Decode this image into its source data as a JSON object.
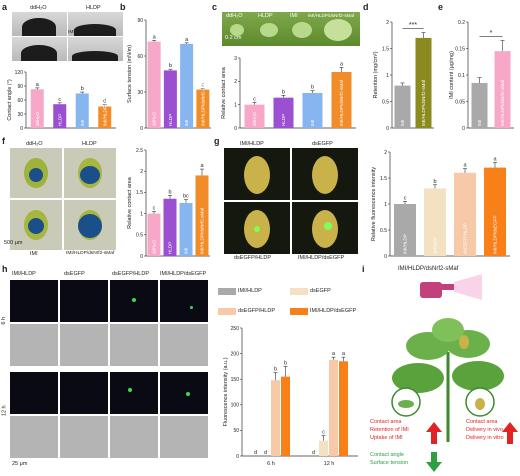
{
  "panel_letters": {
    "a": "a",
    "b": "b",
    "c": "c",
    "d": "d",
    "e": "e",
    "f": "f",
    "g": "g",
    "h": "h",
    "i": "i"
  },
  "colors": {
    "pink": "#f7a8c8",
    "purple": "#9b4fd1",
    "blue": "#86b5f0",
    "orange": "#f28c28",
    "grey": "#a9a9a9",
    "olive": "#8a8a1f",
    "cream": "#f3e1c2",
    "peach": "#f8c9a8",
    "gfp_orange": "#f97f19"
  },
  "panel_a": {
    "img_labels": [
      "ddH₂O",
      "HLDP",
      "IMI",
      "IMI/HLDP/dsNrf2-sMaf"
    ]
  },
  "panel_c": {
    "img_labels": [
      "ddH₂O",
      "HLDP",
      "IMI",
      "IMI/HLDP/dsNrf2-sMaf"
    ],
    "scale": "0.2 cm"
  },
  "panel_f": {
    "img_labels": [
      "ddH₂O",
      "HLDP",
      "IMI",
      "IMI/HLDP/dsNrf2-sMaf"
    ],
    "scale": "500 μm"
  },
  "panel_g": {
    "img_labels": [
      "IMI/HLDP",
      "dsEGFP",
      "dsEGFP/HLDP",
      "IMI/HLDP/dsEGFP"
    ]
  },
  "panel_h": {
    "col_labels": [
      "IMI/HLDP",
      "dsEGFP",
      "dsEGFP/HLDP",
      "IMI/HLDP/dsEGFP"
    ],
    "row_labels": [
      "6 h",
      "12 h"
    ],
    "scale": "25 μm",
    "legend": [
      "IMI/HLDP",
      "dsEGFP",
      "dsEGFP/HLDP",
      "IMI/HLDP/dsEGFP"
    ]
  },
  "panel_i": {
    "title": "IMI/HLDP/dsNrf2-sMaf",
    "left_red": [
      "Contact area",
      "Retention of IMI",
      "Uptake of IMI"
    ],
    "left_green": [
      "Contact angle",
      "Surface tension"
    ],
    "right_red": [
      "Contact area",
      "Delivery in vivo",
      "Delivery in vitro"
    ]
  },
  "chart_data": [
    {
      "id": "a",
      "type": "bar",
      "ylabel": "Contact angle (°)",
      "ylim": [
        0,
        120
      ],
      "yticks": [
        0,
        30,
        60,
        90,
        120
      ],
      "categories": [
        "ddH₂O",
        "HLDP",
        "IMI",
        "IMI/HLDP/dsNrf2-sMaf"
      ],
      "values": [
        83,
        51,
        74,
        46
      ],
      "errors": [
        3,
        3,
        3,
        4
      ],
      "letters": [
        "a",
        "c",
        "b",
        "d"
      ]
    },
    {
      "id": "b",
      "type": "bar",
      "ylabel": "Surface tension (mN/m)",
      "ylim": [
        0,
        90
      ],
      "yticks": [
        0,
        30,
        60,
        90
      ],
      "categories": [
        "ddH₂O",
        "HLDP",
        "IMI",
        "IMI/HLDP/dsNrf2-sMaf"
      ],
      "values": [
        72,
        48,
        70,
        32
      ],
      "errors": [
        1,
        1,
        1,
        1
      ],
      "letters": [
        "a",
        "b",
        "a",
        "c"
      ]
    },
    {
      "id": "c",
      "type": "bar",
      "ylabel": "Relative contact area",
      "ylim": [
        0,
        3
      ],
      "yticks": [
        0,
        1,
        2,
        3
      ],
      "categories": [
        "ddH₂O",
        "HLDP",
        "IMI",
        "IMI/HLDP/dsNrf2-sMaf"
      ],
      "values": [
        1.0,
        1.3,
        1.5,
        2.4
      ],
      "errors": [
        0.1,
        0.1,
        0.1,
        0.2
      ],
      "letters": [
        "c",
        "b",
        "b",
        "a"
      ]
    },
    {
      "id": "d",
      "type": "bar",
      "ylabel": "Retention (mg/cm²)",
      "ylim": [
        0,
        2
      ],
      "yticks": [
        0,
        0.5,
        1,
        1.5,
        2
      ],
      "categories": [
        "IMI",
        "IMI/HLDP/dsNrf2-sMaf"
      ],
      "values": [
        0.8,
        1.7
      ],
      "errors": [
        0.05,
        0.1
      ],
      "significance": "***"
    },
    {
      "id": "e",
      "type": "bar",
      "ylabel": "IMI content (μg/mg)",
      "ylim": [
        0,
        0.2
      ],
      "yticks": [
        0,
        0.05,
        0.1,
        0.15,
        0.2
      ],
      "categories": [
        "IMI",
        "IMI/HLDP/dsNrf2-sMaf"
      ],
      "values": [
        0.085,
        0.145
      ],
      "errors": [
        0.01,
        0.02
      ],
      "significance": "*"
    },
    {
      "id": "f",
      "type": "bar",
      "ylabel": "Relative contact area",
      "ylim": [
        0,
        2.5
      ],
      "yticks": [
        0,
        0.5,
        1,
        1.5,
        2,
        2.5
      ],
      "categories": [
        "ddH₂O",
        "HLDP",
        "IMI",
        "IMI/HLDP/dsNrf2-sMaf"
      ],
      "values": [
        1.0,
        1.35,
        1.25,
        1.9
      ],
      "errors": [
        0.05,
        0.08,
        0.08,
        0.15
      ],
      "letters": [
        "c",
        "b",
        "bc",
        "a"
      ]
    },
    {
      "id": "g",
      "type": "bar",
      "ylabel": "Relative fluorescence intensity",
      "ylim": [
        0,
        2
      ],
      "yticks": [
        0,
        0.5,
        1,
        1.5,
        2
      ],
      "categories": [
        "IMI/HLDP",
        "dsEGFP",
        "dsEGFP/HLDP",
        "IMI/HLDP/dsEGFP"
      ],
      "values": [
        1.0,
        1.3,
        1.6,
        1.7
      ],
      "errors": [
        0.05,
        0.07,
        0.08,
        0.1
      ],
      "letters": [
        "c",
        "b",
        "a",
        "a"
      ]
    },
    {
      "id": "h",
      "type": "bar",
      "ylabel": "Fluorescence intensity (a.u.)",
      "ylim": [
        0,
        250
      ],
      "yticks": [
        0,
        50,
        100,
        150,
        200,
        250
      ],
      "x": [
        "6 h",
        "12 h"
      ],
      "series": [
        {
          "name": "IMI/HLDP",
          "values": [
            0,
            0
          ]
        },
        {
          "name": "dsEGFP",
          "values": [
            0,
            30
          ]
        },
        {
          "name": "dsEGFP/HLDP",
          "values": [
            148,
            188
          ]
        },
        {
          "name": "IMI/HLDP/dsEGFP",
          "values": [
            155,
            185
          ]
        }
      ],
      "errors": [
        [
          0,
          0
        ],
        [
          0,
          10
        ],
        [
          15,
          5
        ],
        [
          20,
          8
        ]
      ],
      "letters": [
        [
          "d",
          "d",
          "b",
          "b"
        ],
        [
          "d",
          "c",
          "a",
          "a"
        ]
      ]
    }
  ]
}
